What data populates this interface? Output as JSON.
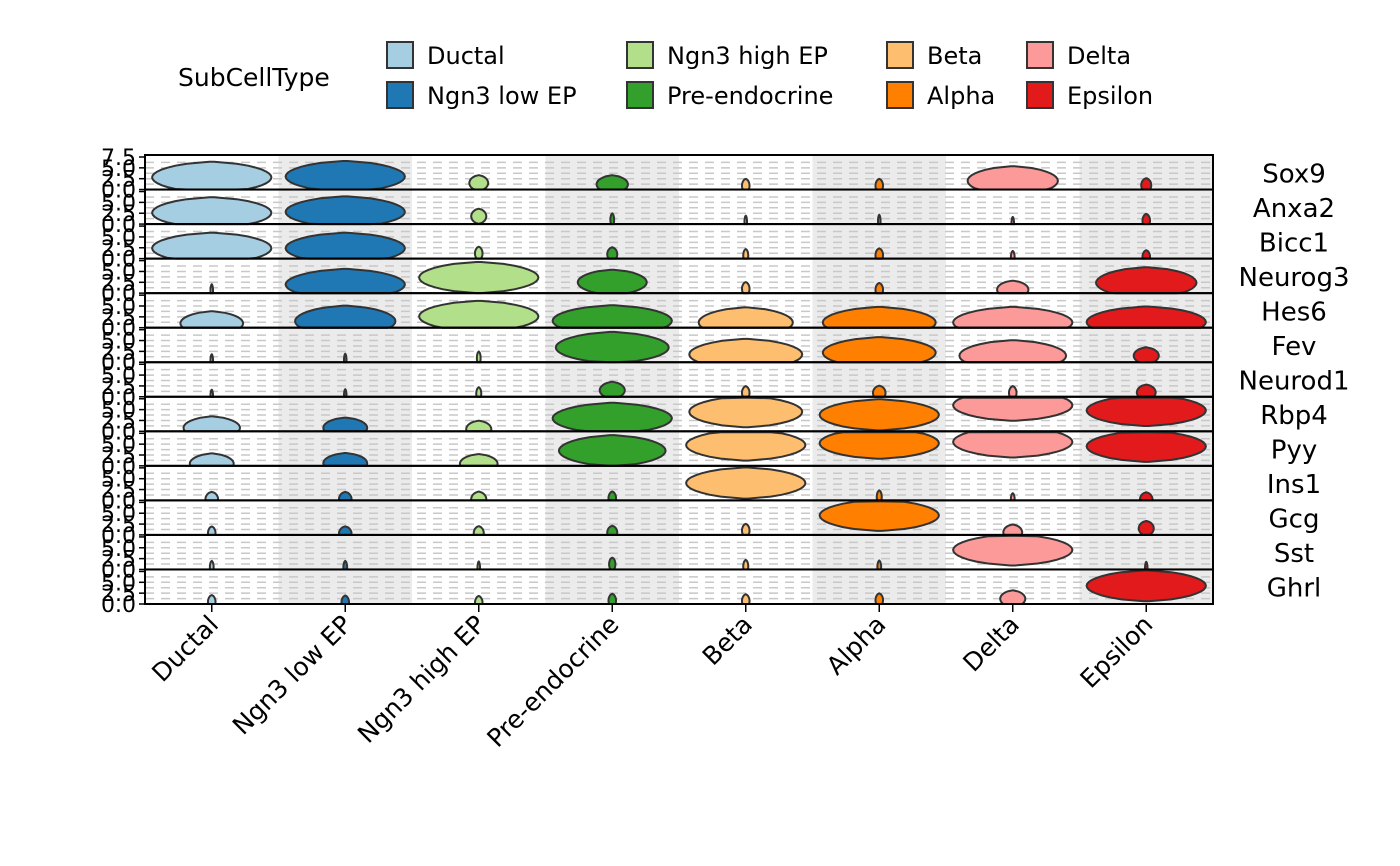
{
  "chart_data": {
    "type": "violin",
    "legend": {
      "title": "SubCellType",
      "placement": "top",
      "entries": [
        {
          "name": "Ductal",
          "color": "#A6CEE3"
        },
        {
          "name": "Ngn3 low EP",
          "color": "#1F78B4"
        },
        {
          "name": "Ngn3 high EP",
          "color": "#B2DF8A"
        },
        {
          "name": "Pre-endocrine",
          "color": "#33A02C"
        },
        {
          "name": "Beta",
          "color": "#FDBF6F"
        },
        {
          "name": "Alpha",
          "color": "#FF7F00"
        },
        {
          "name": "Delta",
          "color": "#FB9A99"
        },
        {
          "name": "Epsilon",
          "color": "#E31A1C"
        }
      ]
    },
    "categories": [
      "Ductal",
      "Ngn3 low EP",
      "Ngn3 high EP",
      "Pre-endocrine",
      "Beta",
      "Alpha",
      "Delta",
      "Epsilon"
    ],
    "y_ticks": [
      "0.0",
      "2.5",
      "5.0",
      "7.5"
    ],
    "ylim": [
      0,
      7.5
    ],
    "grid": true,
    "background_bands": "alternating grey / white per category",
    "genes": [
      {
        "name": "Sox9",
        "centers": [
          2.8,
          3.0,
          1.5,
          1.2,
          0.9,
          0.9,
          2.0,
          1.0
        ],
        "widths": [
          0.95,
          0.95,
          0.15,
          0.25,
          0.06,
          0.06,
          0.72,
          0.08
        ]
      },
      {
        "name": "Anxa2",
        "centers": [
          2.6,
          2.8,
          1.8,
          1.0,
          0.5,
          0.7,
          0.2,
          0.8
        ],
        "widths": [
          0.95,
          0.95,
          0.12,
          0.03,
          0.02,
          0.02,
          0.02,
          0.06
        ]
      },
      {
        "name": "Bicc1",
        "centers": [
          2.4,
          2.4,
          1.2,
          1.0,
          0.7,
          0.8,
          0.3,
          0.4
        ],
        "widths": [
          0.95,
          0.95,
          0.06,
          0.08,
          0.04,
          0.06,
          0.03,
          0.06
        ]
      },
      {
        "name": "Neurog3",
        "centers": [
          0.6,
          2.0,
          3.6,
          2.5,
          1.0,
          0.8,
          0.8,
          2.4
        ],
        "widths": [
          0.02,
          0.95,
          0.95,
          0.55,
          0.06,
          0.06,
          0.25,
          0.8
        ]
      },
      {
        "name": "Hes6",
        "centers": [
          1.0,
          1.5,
          2.6,
          1.6,
          1.2,
          1.2,
          1.2,
          1.3
        ],
        "widths": [
          0.5,
          0.8,
          0.95,
          0.95,
          0.75,
          0.9,
          0.95,
          0.95
        ]
      },
      {
        "name": "Fev",
        "centers": [
          0.4,
          0.5,
          1.0,
          3.4,
          1.8,
          2.2,
          1.5,
          1.5
        ],
        "widths": [
          0.02,
          0.02,
          0.03,
          0.9,
          0.9,
          0.9,
          0.85,
          0.2
        ]
      },
      {
        "name": "Neurod1",
        "centers": [
          0.2,
          0.3,
          0.7,
          1.5,
          0.9,
          0.9,
          0.9,
          1.0
        ],
        "widths": [
          0.02,
          0.02,
          0.04,
          0.2,
          0.06,
          0.1,
          0.06,
          0.15
        ]
      },
      {
        "name": "Rbp4",
        "centers": [
          0.8,
          0.8,
          0.5,
          3.0,
          4.5,
          3.8,
          6.0,
          4.8
        ],
        "widths": [
          0.45,
          0.35,
          0.2,
          0.95,
          0.9,
          0.95,
          0.95,
          0.95
        ]
      },
      {
        "name": "Pyy",
        "centers": [
          0.5,
          0.6,
          0.5,
          3.5,
          4.8,
          5.2,
          5.5,
          4.5
        ],
        "widths": [
          0.35,
          0.35,
          0.3,
          0.85,
          0.95,
          0.95,
          0.95,
          0.95
        ]
      },
      {
        "name": "Ins1",
        "centers": [
          0.3,
          0.3,
          0.3,
          0.5,
          4.0,
          0.8,
          0.2,
          0.2
        ],
        "widths": [
          0.1,
          0.1,
          0.12,
          0.06,
          0.95,
          0.04,
          0.03,
          0.1
        ]
      },
      {
        "name": "Gcg",
        "centers": [
          0.4,
          0.3,
          0.4,
          0.5,
          1.0,
          4.5,
          0.6,
          1.5
        ],
        "widths": [
          0.06,
          0.1,
          0.08,
          0.08,
          0.06,
          0.95,
          0.15,
          0.12
        ]
      },
      {
        "name": "Sst",
        "centers": [
          0.5,
          0.5,
          0.4,
          1.2,
          0.7,
          0.6,
          4.5,
          0.3
        ],
        "widths": [
          0.03,
          0.03,
          0.02,
          0.05,
          0.04,
          0.03,
          0.95,
          0.02
        ]
      },
      {
        "name": "Ghrl",
        "centers": [
          0.5,
          0.4,
          0.3,
          0.8,
          0.7,
          0.9,
          1.2,
          4.2
        ],
        "widths": [
          0.06,
          0.06,
          0.06,
          0.06,
          0.06,
          0.06,
          0.2,
          0.95
        ]
      }
    ]
  }
}
